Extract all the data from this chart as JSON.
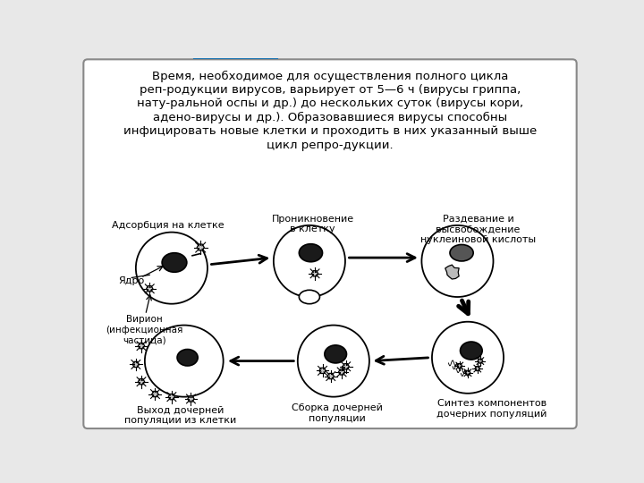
{
  "bg_color": "#e8e8e8",
  "cell_color": "#ffffff",
  "label_adsorb": "Адсорбция на клетке",
  "label_penetrate": "Проникновение\nв клетку",
  "label_uncoat": "Раздевание и\nвысвобождение\nнуклеиновой кислоты",
  "label_synth": "Синтез компонентов\nдочерних популяций",
  "label_assembly": "Сборка дочерней\nпопуляции",
  "label_exit": "Выход дочерней\nпопуляции из клетки",
  "label_yadro": "Ядро",
  "label_virion": "Вирион\n(инфекционная\nчастица)",
  "title_lines": [
    "Время, необходимое для осуществления полного цикла",
    "реп-родукции вирусов, варьирует от 5—6 ч (вирусы гриппа,",
    "нату-ральной оспы и др.) до нескольких суток (вирусы кори,",
    "адено-вирусы и др.). Образовавшиеся вирусы способны",
    "инфицировать новые клетки и проходить в них указанный выше",
    "цикл репро-дукции."
  ]
}
